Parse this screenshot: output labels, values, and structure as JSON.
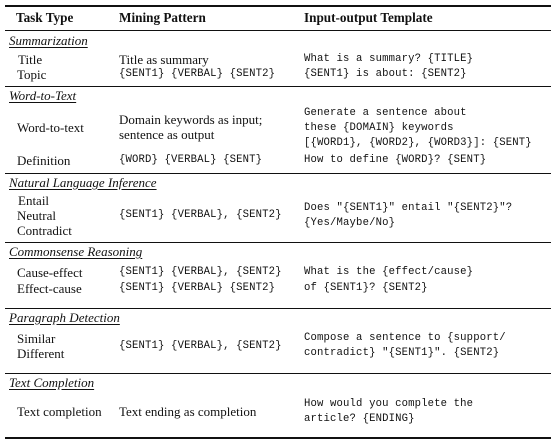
{
  "header": {
    "col1": "Task Type",
    "col2": "Mining Pattern",
    "col3": "Input-output Template"
  },
  "sections": {
    "summarization": {
      "title": "Summarization",
      "task1": "Title",
      "task2": "Topic",
      "pattern1": "Title as summary",
      "pattern2": "{SENT1} {VERBAL} {SENT2}",
      "template1": "What is a summary? {TITLE}",
      "template2": "{SENT1} is about: {SENT2}"
    },
    "word_to_text": {
      "title": "Word-to-Text",
      "task1": "Word-to-text",
      "pattern1_line1": "Domain keywords as input;",
      "pattern1_line2": "sentence as output",
      "template1_line1": "Generate a sentence about",
      "template1_line2": "these {DOMAIN} keywords",
      "template1_line3": "[{WORD1}, {WORD2}, {WORD3}]: {SENT}",
      "task2": "Definition",
      "pattern2": "{WORD} {VERBAL} {SENT}",
      "template2": "How to define {WORD}? {SENT}"
    },
    "nli": {
      "title": "Natural Language Inference",
      "task1": "Entail",
      "task2": "Neutral",
      "task3": "Contradict",
      "pattern": "{SENT1} {VERBAL}, {SENT2}",
      "template_line1": "Does \"{SENT1}\" entail \"{SENT2}\"?",
      "template_line2": "{Yes/Maybe/No}"
    },
    "commonsense": {
      "title": "Commonsense Reasoning",
      "task1": "Cause-effect",
      "task2": "Effect-cause",
      "pattern1": "{SENT1} {VERBAL}, {SENT2}",
      "pattern2": "{SENT1} {VERBAL} {SENT2}",
      "template_line1": "What is the {effect/cause}",
      "template_line2": "of {SENT1}? {SENT2}"
    },
    "paragraph": {
      "title": "Paragraph Detection",
      "task1": "Similar",
      "task2": "Different",
      "pattern": "{SENT1} {VERBAL}, {SENT2}",
      "template_line1": "Compose a sentence to {support/",
      "template_line2": "contradict} \"{SENT1}\". {SENT2}"
    },
    "text_completion": {
      "title": "Text Completion",
      "task1": "Text completion",
      "pattern1": "Text ending as completion",
      "template_line1": "How would you complete the",
      "template_line2": "article? {ENDING}"
    }
  }
}
